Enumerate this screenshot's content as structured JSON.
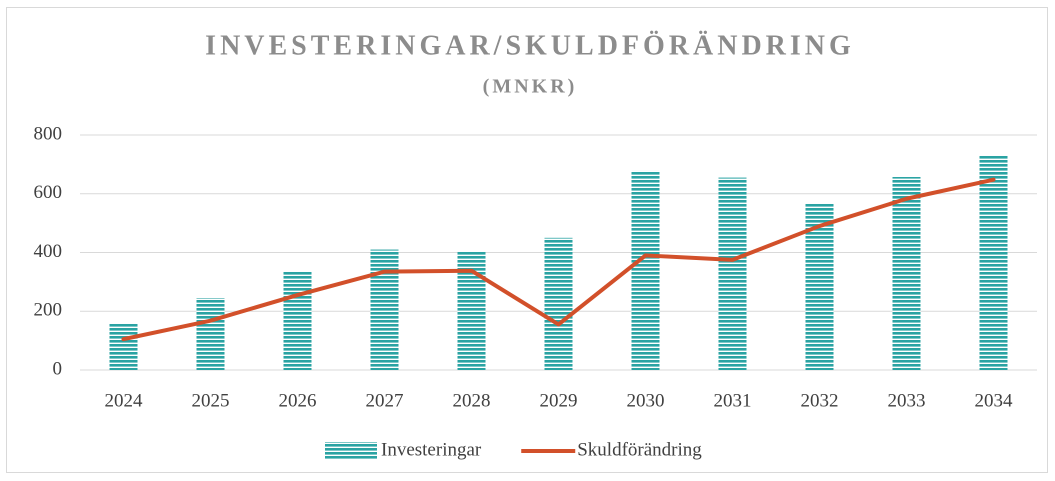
{
  "chart_data": {
    "type": "combo",
    "title": "INVESTERINGAR/SKULDFÖRÄNDRING",
    "subtitle": "(MNKR)",
    "categories": [
      "2024",
      "2025",
      "2026",
      "2027",
      "2028",
      "2029",
      "2030",
      "2031",
      "2032",
      "2033",
      "2034"
    ],
    "series": [
      {
        "name": "Investeringar",
        "type": "bar",
        "color": "#2aa3a3",
        "values": [
          160,
          245,
          335,
          410,
          405,
          450,
          678,
          655,
          568,
          657,
          730
        ]
      },
      {
        "name": "Skuldförändring",
        "type": "line",
        "color": "#d2502a",
        "values": [
          105,
          168,
          255,
          335,
          338,
          155,
          390,
          375,
          490,
          583,
          648
        ]
      }
    ],
    "ylim": [
      0,
      800
    ],
    "yticks": [
      0,
      200,
      400,
      600,
      800
    ],
    "grid": true,
    "legend": "bottom"
  }
}
